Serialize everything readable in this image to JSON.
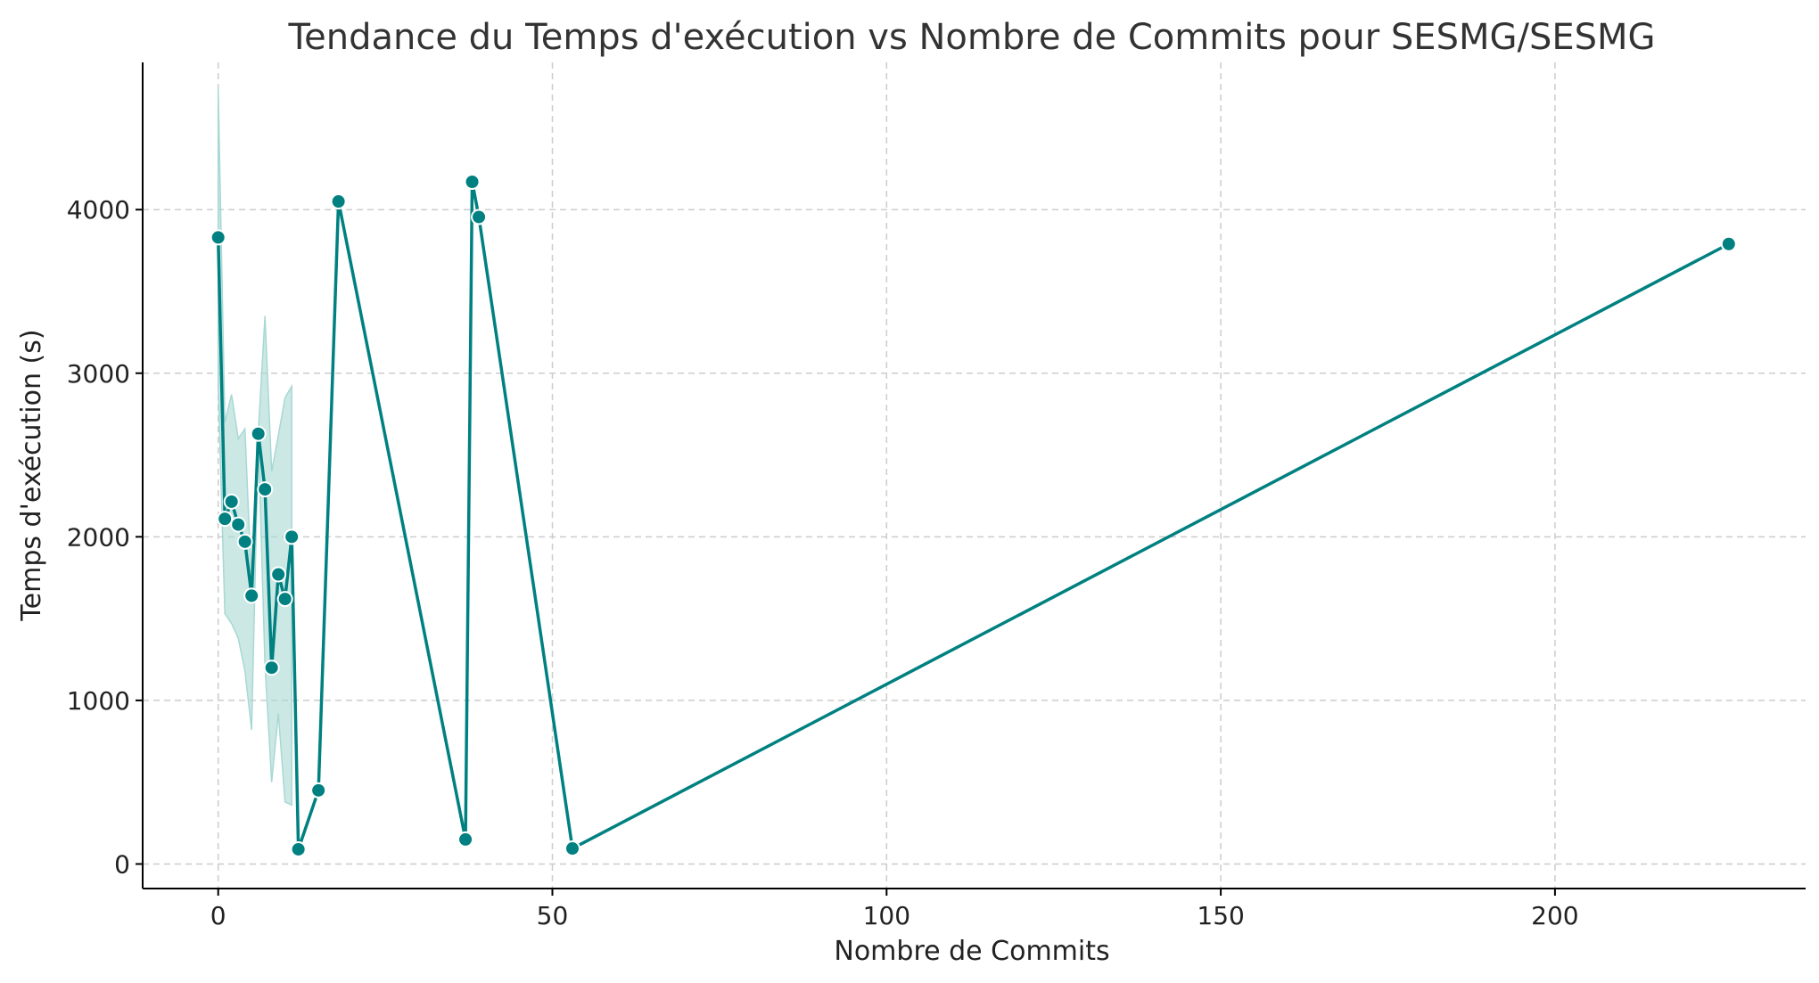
{
  "chart_data": {
    "type": "line",
    "title": "Tendance du Temps d'exécution vs Nombre de Commits pour SESMG/SESMG",
    "xlabel": "Nombre de Commits",
    "ylabel": "Temps d'exécution (s)",
    "xlim": [
      -11.3,
      237.5
    ],
    "ylim": [
      -150,
      4900
    ],
    "xticks": [
      0,
      50,
      100,
      150,
      200
    ],
    "yticks": [
      0,
      1000,
      2000,
      3000,
      4000
    ],
    "grid": true,
    "line_color": "#008080",
    "band_color": "#a8d8d4",
    "series": [
      {
        "x": [
          0,
          1,
          2,
          3,
          4,
          5,
          6,
          7,
          8,
          9,
          10,
          11,
          12,
          15,
          18,
          37,
          38,
          39,
          53,
          226
        ],
        "y": [
          3830,
          2110,
          2215,
          2075,
          1970,
          1640,
          2630,
          2290,
          1200,
          1770,
          1620,
          2000,
          90,
          450,
          4050,
          150,
          4170,
          3955,
          95,
          3790
        ]
      }
    ],
    "confidence_band": {
      "x": [
        0,
        1,
        2,
        3,
        4,
        5,
        6,
        7,
        8,
        9,
        10,
        11
      ],
      "upper": [
        4740,
        2700,
        2870,
        2600,
        2660,
        1700,
        2640,
        3350,
        2400,
        2620,
        2850,
        2920
      ],
      "lower": [
        2920,
        1530,
        1470,
        1380,
        1180,
        820,
        2600,
        1220,
        500,
        920,
        380,
        360
      ]
    }
  }
}
